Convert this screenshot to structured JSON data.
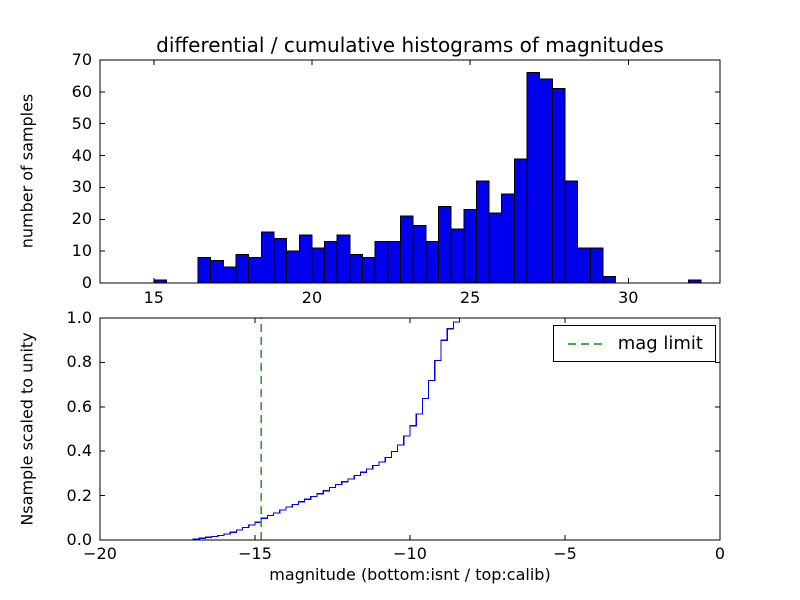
{
  "colors": {
    "bar_fill": "#0000ee",
    "bar_edge": "#000000",
    "step_line": "#0000ee",
    "axis": "#000000",
    "text": "#000000"
  },
  "chart_data": [
    {
      "type": "bar",
      "role": "top-differential-histogram",
      "title": "differential / cumulative histograms of magnitudes",
      "ylabel": "number of samples",
      "xlim": [
        13.3,
        32.9
      ],
      "ylim": [
        0,
        70
      ],
      "xticks": [
        15,
        20,
        25,
        30
      ],
      "xticklabels": [
        "15",
        "20",
        "25",
        "30"
      ],
      "yticks": [
        0,
        10,
        20,
        30,
        40,
        50,
        60,
        70
      ],
      "yticklabels": [
        "0",
        "10",
        "20",
        "30",
        "40",
        "50",
        "60",
        "70"
      ],
      "bin_width": 0.4,
      "bars": [
        [
          15.0,
          1
        ],
        [
          16.4,
          8
        ],
        [
          16.8,
          7
        ],
        [
          17.2,
          5
        ],
        [
          17.6,
          9
        ],
        [
          18.0,
          8
        ],
        [
          18.4,
          16
        ],
        [
          18.8,
          14
        ],
        [
          19.2,
          10
        ],
        [
          19.6,
          15
        ],
        [
          20.0,
          11
        ],
        [
          20.4,
          13
        ],
        [
          20.8,
          15
        ],
        [
          21.2,
          9
        ],
        [
          21.6,
          8
        ],
        [
          22.0,
          13
        ],
        [
          22.4,
          13
        ],
        [
          22.8,
          21
        ],
        [
          23.2,
          18
        ],
        [
          23.6,
          13
        ],
        [
          24.0,
          24
        ],
        [
          24.4,
          17
        ],
        [
          24.8,
          23
        ],
        [
          25.2,
          32
        ],
        [
          25.6,
          22
        ],
        [
          26.0,
          28
        ],
        [
          26.4,
          39
        ],
        [
          26.8,
          66
        ],
        [
          27.2,
          64
        ],
        [
          27.6,
          61
        ],
        [
          28.0,
          32
        ],
        [
          28.4,
          11
        ],
        [
          28.8,
          11
        ],
        [
          29.2,
          2
        ],
        [
          31.9,
          1
        ]
      ]
    },
    {
      "type": "line",
      "role": "bottom-cumulative-histogram",
      "xlabel": "magnitude (bottom:isnt / top:calib)",
      "ylabel": "Nsample scaled to unity",
      "xlim": [
        -20,
        0
      ],
      "ylim": [
        0.0,
        1.0
      ],
      "xticks": [
        -20,
        -15,
        -10,
        -5,
        0
      ],
      "xticklabels": [
        "−20",
        "−15",
        "−10",
        "−5",
        "0"
      ],
      "yticks": [
        0.0,
        0.2,
        0.4,
        0.6,
        0.8,
        1.0
      ],
      "yticklabels": [
        "0.0",
        "0.2",
        "0.4",
        "0.6",
        "0.8",
        "1.0"
      ],
      "step_points": [
        [
          -20.0,
          0.0
        ],
        [
          -17.2,
          0.0
        ],
        [
          -17.0,
          0.005
        ],
        [
          -16.8,
          0.008
        ],
        [
          -16.6,
          0.012
        ],
        [
          -16.4,
          0.016
        ],
        [
          -16.2,
          0.02
        ],
        [
          -16.0,
          0.027
        ],
        [
          -15.8,
          0.035
        ],
        [
          -15.6,
          0.045
        ],
        [
          -15.4,
          0.056
        ],
        [
          -15.2,
          0.068
        ],
        [
          -15.0,
          0.08
        ],
        [
          -14.8,
          0.098
        ],
        [
          -14.6,
          0.11
        ],
        [
          -14.4,
          0.122
        ],
        [
          -14.2,
          0.135
        ],
        [
          -14.0,
          0.148
        ],
        [
          -13.8,
          0.16
        ],
        [
          -13.6,
          0.172
        ],
        [
          -13.4,
          0.184
        ],
        [
          -13.2,
          0.196
        ],
        [
          -13.0,
          0.208
        ],
        [
          -12.8,
          0.222
        ],
        [
          -12.6,
          0.236
        ],
        [
          -12.4,
          0.25
        ],
        [
          -12.2,
          0.262
        ],
        [
          -12.0,
          0.275
        ],
        [
          -11.8,
          0.29
        ],
        [
          -11.6,
          0.305
        ],
        [
          -11.4,
          0.32
        ],
        [
          -11.2,
          0.335
        ],
        [
          -11.0,
          0.352
        ],
        [
          -10.8,
          0.372
        ],
        [
          -10.6,
          0.398
        ],
        [
          -10.4,
          0.428
        ],
        [
          -10.2,
          0.468
        ],
        [
          -10.0,
          0.515
        ],
        [
          -9.8,
          0.568
        ],
        [
          -9.6,
          0.638
        ],
        [
          -9.4,
          0.718
        ],
        [
          -9.2,
          0.808
        ],
        [
          -9.0,
          0.9
        ],
        [
          -8.8,
          0.952
        ],
        [
          -8.6,
          0.982
        ],
        [
          -8.4,
          1.0
        ],
        [
          0.0,
          1.0
        ]
      ],
      "mag_limit_x": -14.8,
      "legend": {
        "label": "mag limit",
        "style": "dashed",
        "color": "#2ca02c",
        "position": "upper right"
      }
    }
  ]
}
